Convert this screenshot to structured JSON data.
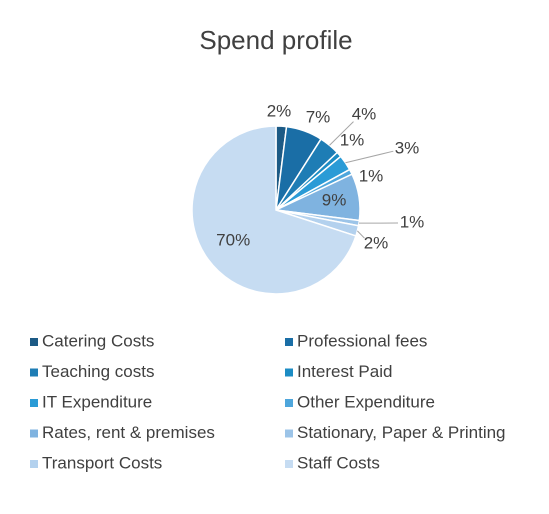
{
  "chart_data": {
    "type": "pie",
    "title": "Spend profile",
    "categories": [
      "Catering Costs",
      "Professional fees",
      "Teaching costs",
      "Interest Paid",
      "IT Expenditure",
      "Other Expenditure",
      "Rates, rent & premises",
      "Stationary, Paper & Printing",
      "Transport Costs",
      "Staff Costs"
    ],
    "values": [
      2,
      7,
      4,
      1,
      3,
      1,
      9,
      1,
      2,
      70
    ],
    "value_labels": [
      "2%",
      "7%",
      "4%",
      "1%",
      "3%",
      "1%",
      "9%",
      "1%",
      "2%",
      "70%"
    ],
    "colors": [
      "#1c5a85",
      "#1a6ea6",
      "#1e7db5",
      "#1c8cc4",
      "#2a9bd6",
      "#4ea6dc",
      "#7fb3e0",
      "#9cc4e8",
      "#b3d1ee",
      "#c6dcf2"
    ],
    "legend": "bottom"
  }
}
